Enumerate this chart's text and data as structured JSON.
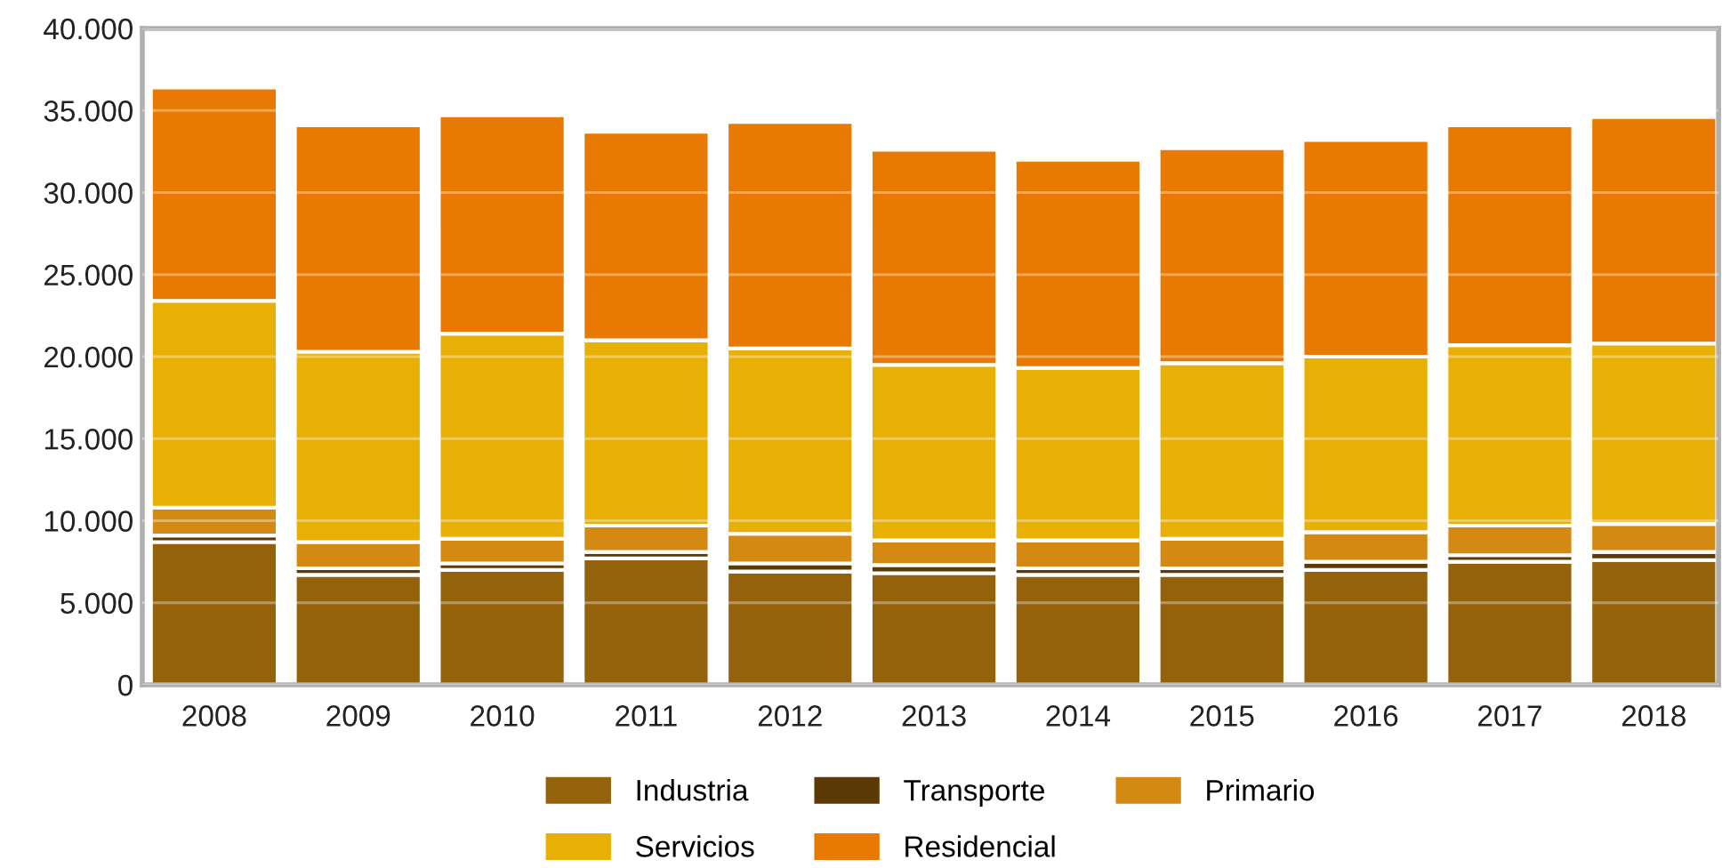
{
  "chart_data": {
    "type": "bar",
    "stacked": true,
    "categories": [
      "2008",
      "2009",
      "2010",
      "2011",
      "2012",
      "2013",
      "2014",
      "2015",
      "2016",
      "2017",
      "2018"
    ],
    "series": [
      {
        "name": "Industria",
        "color": "#94620a",
        "values": [
          8700,
          6700,
          7000,
          7700,
          6900,
          6800,
          6700,
          6700,
          7000,
          7500,
          7600
        ]
      },
      {
        "name": "Transporte",
        "color": "#5c3a06",
        "values": [
          400,
          400,
          400,
          400,
          500,
          500,
          400,
          400,
          500,
          400,
          500
        ]
      },
      {
        "name": "Primario",
        "color": "#d48a12",
        "values": [
          1700,
          1600,
          1500,
          1600,
          1800,
          1500,
          1700,
          1800,
          1800,
          1800,
          1700
        ]
      },
      {
        "name": "Servicios",
        "color": "#e8b004",
        "values": [
          12600,
          11600,
          12500,
          11300,
          11300,
          10700,
          10500,
          10700,
          10700,
          11000,
          11000
        ]
      },
      {
        "name": "Residencial",
        "color": "#e87a04",
        "values": [
          13000,
          13800,
          13300,
          12700,
          13800,
          13100,
          12700,
          13100,
          13200,
          13400,
          13800
        ]
      }
    ],
    "ylim": [
      0,
      40000
    ],
    "yticks": [
      0,
      {
        "value": 5000,
        "label": "5.000"
      },
      {
        "value": 10000,
        "label": "10.000"
      },
      {
        "value": 15000,
        "label": "15.000"
      },
      {
        "value": 20000,
        "label": "20.000"
      },
      {
        "value": 25000,
        "label": "25.000"
      },
      {
        "value": 30000,
        "label": "30.000"
      },
      {
        "value": 35000,
        "label": "35.000"
      },
      {
        "value": 40000,
        "label": "40.000"
      }
    ],
    "grid": "y",
    "legend": "bottom"
  }
}
